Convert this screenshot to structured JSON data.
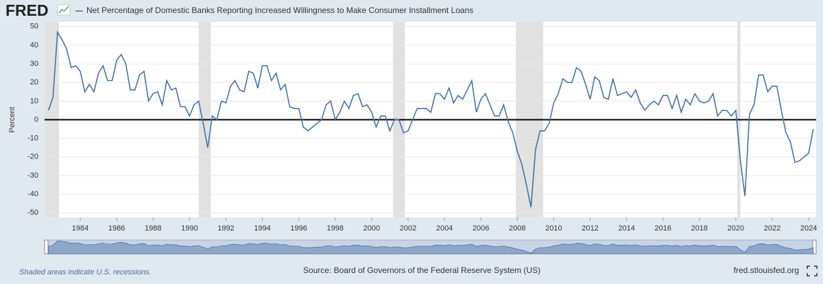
{
  "logo": "FRED",
  "chart_data": {
    "type": "line",
    "y_label": "Percent",
    "x": [
      1982.25,
      1982.5,
      1982.75,
      1983,
      1983.25,
      1983.5,
      1983.75,
      1984,
      1984.25,
      1984.5,
      1984.75,
      1985,
      1985.25,
      1985.5,
      1985.75,
      1986,
      1986.25,
      1986.5,
      1986.75,
      1987,
      1987.25,
      1987.5,
      1987.75,
      1988,
      1988.25,
      1988.5,
      1988.75,
      1989,
      1989.25,
      1989.5,
      1989.75,
      1990,
      1990.25,
      1990.5,
      1990.75,
      1991,
      1991.25,
      1991.5,
      1991.75,
      1992,
      1992.25,
      1992.5,
      1992.75,
      1993,
      1993.25,
      1993.5,
      1993.75,
      1994,
      1994.25,
      1994.5,
      1994.75,
      1995,
      1995.25,
      1995.5,
      1995.75,
      1996,
      1996.25,
      1996.5,
      1996.75,
      1997,
      1997.25,
      1997.5,
      1997.75,
      1998,
      1998.25,
      1998.5,
      1998.75,
      1999,
      1999.25,
      1999.5,
      1999.75,
      2000,
      2000.25,
      2000.5,
      2000.75,
      2001,
      2001.25,
      2001.5,
      2001.75,
      2002,
      2002.25,
      2002.5,
      2002.75,
      2003,
      2003.25,
      2003.5,
      2003.75,
      2004,
      2004.25,
      2004.5,
      2004.75,
      2005,
      2005.25,
      2005.5,
      2005.75,
      2006,
      2006.25,
      2006.5,
      2006.75,
      2007,
      2007.25,
      2007.5,
      2007.75,
      2008,
      2008.25,
      2008.5,
      2008.75,
      2009,
      2009.25,
      2009.5,
      2009.75,
      2010,
      2010.25,
      2010.5,
      2010.75,
      2011,
      2011.25,
      2011.5,
      2011.75,
      2012,
      2012.25,
      2012.5,
      2012.75,
      2013,
      2013.25,
      2013.5,
      2013.75,
      2014,
      2014.25,
      2014.5,
      2014.75,
      2015,
      2015.25,
      2015.5,
      2015.75,
      2016,
      2016.25,
      2016.5,
      2016.75,
      2017,
      2017.25,
      2017.5,
      2017.75,
      2018,
      2018.25,
      2018.5,
      2018.75,
      2019,
      2019.25,
      2019.5,
      2019.75,
      2020,
      2020.25,
      2020.5,
      2020.75,
      2021,
      2021.25,
      2021.5,
      2021.75,
      2022,
      2022.25,
      2022.5,
      2022.75,
      2023,
      2023.25,
      2023.5,
      2023.75,
      2024,
      2024.25
    ],
    "series": [
      {
        "name": "Net Percentage of Domestic Banks Reporting Increased Willingness to Make Consumer Installment Loans",
        "color": "#4572a7",
        "values": [
          5,
          12,
          47,
          43,
          38,
          28,
          29,
          26,
          15,
          19,
          15,
          25,
          29,
          21,
          21,
          32,
          35,
          30,
          16,
          16,
          24,
          26,
          10,
          14,
          15,
          8,
          21,
          16,
          17,
          7,
          7,
          2,
          8,
          10,
          -2,
          -15,
          2,
          0,
          10,
          9,
          18,
          21,
          16,
          15,
          26,
          25,
          17,
          29,
          29,
          21,
          25,
          16,
          19,
          7,
          6,
          6,
          -4,
          -6,
          -4,
          -2,
          0,
          8,
          10,
          0,
          4,
          10,
          6,
          13,
          14,
          7,
          8,
          4,
          -4,
          2,
          2,
          -6,
          0,
          0,
          -7,
          -6,
          0,
          6,
          6,
          6,
          4,
          14,
          14,
          11,
          17,
          9,
          13,
          11,
          16,
          21,
          4,
          11,
          14,
          8,
          2,
          2,
          8,
          -1,
          -7,
          -17,
          -24,
          -35,
          -47,
          -16,
          -6,
          -6,
          -2,
          9,
          14,
          22,
          20,
          20,
          28,
          26,
          19,
          11,
          23,
          21,
          12,
          11,
          22,
          13,
          14,
          15,
          12,
          16,
          9,
          5,
          8,
          10,
          8,
          13,
          13,
          6,
          13,
          4,
          11,
          8,
          14,
          10,
          9,
          10,
          14,
          2,
          5,
          5,
          2,
          5,
          -22,
          -41,
          3,
          8,
          24,
          24,
          15,
          18,
          18,
          5,
          -7,
          -12,
          -23,
          -22,
          -20,
          -18,
          -5
        ]
      }
    ],
    "xlim": [
      1982.04,
      2024.41
    ],
    "xticks": [
      1984,
      1986,
      1988,
      1990,
      1992,
      1994,
      1996,
      1998,
      2000,
      2002,
      2004,
      2006,
      2008,
      2010,
      2012,
      2014,
      2016,
      2018,
      2020,
      2022,
      2024
    ],
    "ylim": [
      -52.5,
      52.5
    ],
    "yticks": [
      50,
      40,
      30,
      20,
      10,
      0,
      -10,
      -20,
      -30,
      -40,
      -50
    ],
    "zero_line": true,
    "grid": true,
    "recessions": [
      [
        1981.5,
        1982.83
      ],
      [
        1990.5,
        1991.17
      ],
      [
        2001.17,
        2001.83
      ],
      [
        2007.92,
        2009.42
      ],
      [
        2020.08,
        2020.25
      ]
    ],
    "recession_color": "#e1e1e1"
  },
  "footer": {
    "note": "Shaded areas indicate U.S. recessions.",
    "source": "Source: Board of Governors of the Federal Reserve System (US)",
    "site": "fred.stlouisfed.org"
  }
}
